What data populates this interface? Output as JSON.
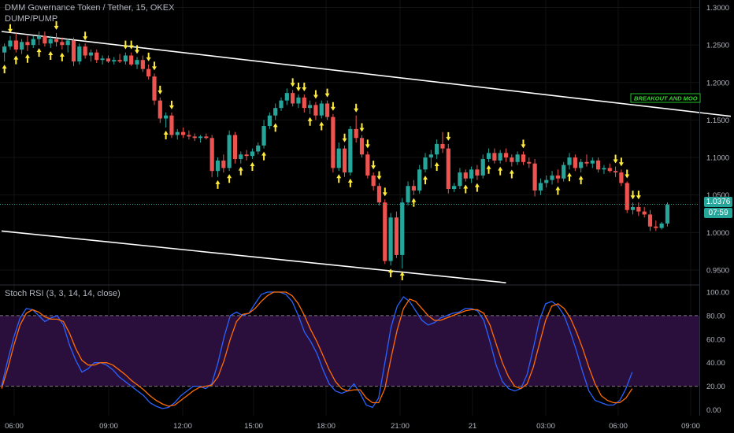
{
  "header": {
    "symbol_line": "DMM Governance Token / Tether, 15, OKEX",
    "indicator_line": "DUMP/PUMP",
    "stoch_label": "Stoch RSI (3, 3, 14, 14, close)"
  },
  "annotation": "BREAKOUT AND MOO",
  "price_badge": {
    "value": "1.0376",
    "timer": "07:59"
  },
  "colors": {
    "bg": "#000000",
    "up": "#26a69a",
    "down": "#ef5350",
    "arrow": "#ffeb3b",
    "line": "#ffffff",
    "k": "#2962ff",
    "d": "#ff6d00",
    "band": "#2a0f3d",
    "axis": "#b2b5be"
  },
  "chart_data": [
    {
      "type": "candlestick",
      "title": "DMM Governance Token / Tether, 15, OKEX",
      "ylim": [
        0.93,
        1.31
      ],
      "y_ticks": [
        "1.3000",
        "1.2500",
        "1.2000",
        "1.1500",
        "1.1000",
        "1.0500",
        "1.0000",
        "0.9500"
      ],
      "x_ticks": [
        "06:00",
        "09:00",
        "12:00",
        "15:00",
        "18:00",
        "21:00",
        "21",
        "03:00",
        "06:00",
        "09:00"
      ],
      "last_price": 1.0376,
      "trendlines": [
        {
          "from": [
            0,
            1.268
          ],
          "to": [
            126,
            1.155
          ]
        },
        {
          "from": [
            0,
            1.002
          ],
          "to": [
            87,
            0.933
          ]
        }
      ],
      "candles": [
        [
          1.24,
          1.252,
          1.228,
          1.248
        ],
        [
          1.248,
          1.262,
          1.244,
          1.256
        ],
        [
          1.256,
          1.266,
          1.24,
          1.244
        ],
        [
          1.244,
          1.258,
          1.238,
          1.254
        ],
        [
          1.254,
          1.262,
          1.242,
          1.25
        ],
        [
          1.25,
          1.262,
          1.246,
          1.258
        ],
        [
          1.258,
          1.268,
          1.25,
          1.262
        ],
        [
          1.262,
          1.268,
          1.248,
          1.252
        ],
        [
          1.252,
          1.262,
          1.246,
          1.258
        ],
        [
          1.258,
          1.266,
          1.248,
          1.254
        ],
        [
          1.254,
          1.26,
          1.244,
          1.25
        ],
        [
          1.25,
          1.258,
          1.24,
          1.256
        ],
        [
          1.256,
          1.26,
          1.222,
          1.228
        ],
        [
          1.228,
          1.252,
          1.224,
          1.248
        ],
        [
          1.248,
          1.252,
          1.232,
          1.236
        ],
        [
          1.236,
          1.244,
          1.228,
          1.24
        ],
        [
          1.24,
          1.244,
          1.226,
          1.23
        ],
        [
          1.23,
          1.236,
          1.224,
          1.232
        ],
        [
          1.232,
          1.236,
          1.226,
          1.228
        ],
        [
          1.228,
          1.234,
          1.224,
          1.23
        ],
        [
          1.23,
          1.238,
          1.226,
          1.228
        ],
        [
          1.228,
          1.24,
          1.224,
          1.236
        ],
        [
          1.236,
          1.24,
          1.222,
          1.224
        ],
        [
          1.224,
          1.234,
          1.218,
          1.23
        ],
        [
          1.23,
          1.236,
          1.214,
          1.218
        ],
        [
          1.218,
          1.224,
          1.204,
          1.208
        ],
        [
          1.208,
          1.212,
          1.17,
          1.176
        ],
        [
          1.176,
          1.18,
          1.146,
          1.152
        ],
        [
          1.152,
          1.16,
          1.14,
          1.156
        ],
        [
          1.156,
          1.16,
          1.126,
          1.13
        ],
        [
          1.13,
          1.138,
          1.124,
          1.134
        ],
        [
          1.134,
          1.14,
          1.126,
          1.13
        ],
        [
          1.13,
          1.136,
          1.124,
          1.128
        ],
        [
          1.128,
          1.132,
          1.122,
          1.126
        ],
        [
          1.126,
          1.13,
          1.12,
          1.128
        ],
        [
          1.128,
          1.132,
          1.124,
          1.126
        ],
        [
          1.126,
          1.13,
          1.074,
          1.082
        ],
        [
          1.082,
          1.1,
          1.074,
          1.096
        ],
        [
          1.096,
          1.104,
          1.08,
          1.086
        ],
        [
          1.086,
          1.136,
          1.082,
          1.13
        ],
        [
          1.13,
          1.134,
          1.092,
          1.098
        ],
        [
          1.098,
          1.108,
          1.092,
          1.104
        ],
        [
          1.104,
          1.11,
          1.096,
          1.102
        ],
        [
          1.102,
          1.112,
          1.098,
          1.108
        ],
        [
          1.108,
          1.12,
          1.104,
          1.116
        ],
        [
          1.116,
          1.15,
          1.112,
          1.142
        ],
        [
          1.142,
          1.16,
          1.138,
          1.156
        ],
        [
          1.156,
          1.172,
          1.15,
          1.166
        ],
        [
          1.166,
          1.18,
          1.162,
          1.176
        ],
        [
          1.176,
          1.192,
          1.17,
          1.186
        ],
        [
          1.186,
          1.19,
          1.168,
          1.172
        ],
        [
          1.172,
          1.184,
          1.166,
          1.18
        ],
        [
          1.18,
          1.184,
          1.16,
          1.166
        ],
        [
          1.166,
          1.176,
          1.158,
          1.17
        ],
        [
          1.17,
          1.174,
          1.15,
          1.156
        ],
        [
          1.156,
          1.176,
          1.152,
          1.172
        ],
        [
          1.172,
          1.176,
          1.15,
          1.154
        ],
        [
          1.154,
          1.158,
          1.08,
          1.086
        ],
        [
          1.086,
          1.12,
          1.082,
          1.112
        ],
        [
          1.112,
          1.116,
          1.074,
          1.08
        ],
        [
          1.08,
          1.142,
          1.076,
          1.138
        ],
        [
          1.138,
          1.156,
          1.12,
          1.126
        ],
        [
          1.126,
          1.13,
          1.1,
          1.104
        ],
        [
          1.104,
          1.108,
          1.072,
          1.076
        ],
        [
          1.076,
          1.08,
          1.056,
          1.062
        ],
        [
          1.062,
          1.066,
          1.036,
          1.04
        ],
        [
          1.04,
          1.044,
          0.958,
          0.962
        ],
        [
          0.962,
          1.026,
          0.956,
          1.02
        ],
        [
          1.02,
          1.028,
          0.966,
          0.97
        ],
        [
          0.97,
          1.046,
          0.952,
          1.04
        ],
        [
          1.04,
          1.068,
          1.036,
          1.062
        ],
        [
          1.062,
          1.07,
          1.05,
          1.056
        ],
        [
          1.056,
          1.09,
          1.052,
          1.084
        ],
        [
          1.084,
          1.106,
          1.08,
          1.1
        ],
        [
          1.1,
          1.11,
          1.086,
          1.104
        ],
        [
          1.104,
          1.124,
          1.098,
          1.118
        ],
        [
          1.118,
          1.134,
          1.106,
          1.112
        ],
        [
          1.112,
          1.118,
          1.052,
          1.058
        ],
        [
          1.058,
          1.066,
          1.054,
          1.062
        ],
        [
          1.062,
          1.086,
          1.058,
          1.08
        ],
        [
          1.08,
          1.084,
          1.068,
          1.072
        ],
        [
          1.072,
          1.088,
          1.066,
          1.084
        ],
        [
          1.084,
          1.09,
          1.07,
          1.076
        ],
        [
          1.076,
          1.104,
          1.072,
          1.098
        ],
        [
          1.098,
          1.112,
          1.094,
          1.106
        ],
        [
          1.106,
          1.112,
          1.092,
          1.096
        ],
        [
          1.096,
          1.11,
          1.092,
          1.106
        ],
        [
          1.106,
          1.112,
          1.094,
          1.1
        ],
        [
          1.1,
          1.104,
          1.088,
          1.094
        ],
        [
          1.094,
          1.108,
          1.09,
          1.104
        ],
        [
          1.104,
          1.108,
          1.09,
          1.094
        ],
        [
          1.094,
          1.1,
          1.086,
          1.092
        ],
        [
          1.092,
          1.098,
          1.048,
          1.056
        ],
        [
          1.056,
          1.072,
          1.05,
          1.066
        ],
        [
          1.066,
          1.076,
          1.06,
          1.07
        ],
        [
          1.07,
          1.082,
          1.064,
          1.076
        ],
        [
          1.076,
          1.084,
          1.066,
          1.072
        ],
        [
          1.072,
          1.094,
          1.068,
          1.09
        ],
        [
          1.09,
          1.106,
          1.084,
          1.1
        ],
        [
          1.1,
          1.104,
          1.082,
          1.086
        ],
        [
          1.086,
          1.098,
          1.08,
          1.094
        ],
        [
          1.094,
          1.104,
          1.088,
          1.092
        ],
        [
          1.092,
          1.1,
          1.086,
          1.096
        ],
        [
          1.096,
          1.1,
          1.08,
          1.084
        ],
        [
          1.084,
          1.09,
          1.078,
          1.086
        ],
        [
          1.086,
          1.092,
          1.08,
          1.082
        ],
        [
          1.082,
          1.088,
          1.074,
          1.08
        ],
        [
          1.08,
          1.084,
          1.062,
          1.066
        ],
        [
          1.066,
          1.068,
          1.026,
          1.03
        ],
        [
          1.03,
          1.04,
          1.024,
          1.034
        ],
        [
          1.034,
          1.04,
          1.022,
          1.028
        ],
        [
          1.028,
          1.034,
          1.02,
          1.024
        ],
        [
          1.024,
          1.03,
          1.002,
          1.008
        ],
        [
          1.008,
          1.016,
          1.002,
          1.006
        ],
        [
          1.006,
          1.014,
          1.004,
          1.012
        ],
        [
          1.012,
          1.04,
          1.008,
          1.037
        ]
      ],
      "up_arrows": [
        0,
        2,
        4,
        6,
        8,
        10,
        28,
        37,
        39,
        41,
        43,
        45,
        47,
        53,
        55,
        58,
        60,
        67,
        69,
        71,
        73,
        75,
        80,
        82,
        84,
        86,
        88,
        96,
        98,
        100
      ],
      "down_arrows": [
        1,
        9,
        14,
        21,
        22,
        23,
        25,
        26,
        27,
        29,
        50,
        51,
        52,
        54,
        56,
        57,
        59,
        61,
        62,
        63,
        64,
        65,
        66,
        77,
        90,
        106,
        107,
        108,
        109,
        110
      ]
    },
    {
      "type": "line",
      "title": "Stoch RSI (3, 3, 14, 14, close)",
      "ylim": [
        -5,
        106
      ],
      "y_ticks": [
        "100.00",
        "80.00",
        "60.00",
        "40.00",
        "20.00",
        "0.00"
      ],
      "band": [
        20,
        80
      ],
      "series": [
        {
          "name": "K",
          "values": [
            20,
            42,
            62,
            78,
            86,
            85,
            80,
            75,
            78,
            80,
            72,
            55,
            42,
            32,
            35,
            40,
            40,
            38,
            34,
            28,
            24,
            20,
            16,
            12,
            6,
            3,
            1,
            2,
            6,
            12,
            16,
            20,
            20,
            18,
            22,
            40,
            62,
            80,
            83,
            80,
            82,
            90,
            98,
            100,
            100,
            100,
            98,
            92,
            80,
            66,
            58,
            48,
            34,
            22,
            16,
            14,
            16,
            22,
            14,
            4,
            2,
            10,
            40,
            70,
            88,
            96,
            92,
            84,
            76,
            72,
            74,
            78,
            80,
            82,
            83,
            86,
            86,
            84,
            76,
            58,
            38,
            24,
            18,
            16,
            18,
            30,
            52,
            76,
            90,
            92,
            88,
            80,
            66,
            50,
            32,
            16,
            8,
            6,
            4,
            4,
            8,
            18,
            32
          ]
        },
        {
          "name": "D",
          "values": [
            18,
            35,
            55,
            72,
            82,
            85,
            83,
            79,
            77,
            77,
            75,
            65,
            52,
            42,
            38,
            38,
            40,
            40,
            38,
            34,
            30,
            25,
            21,
            17,
            12,
            8,
            5,
            3,
            4,
            8,
            12,
            16,
            19,
            20,
            21,
            28,
            42,
            60,
            75,
            81,
            82,
            86,
            92,
            97,
            100,
            100,
            100,
            97,
            90,
            80,
            68,
            58,
            46,
            34,
            24,
            18,
            16,
            17,
            17,
            10,
            6,
            6,
            18,
            44,
            68,
            86,
            94,
            92,
            86,
            80,
            76,
            76,
            78,
            80,
            82,
            84,
            85,
            85,
            82,
            72,
            56,
            40,
            28,
            20,
            18,
            22,
            36,
            56,
            76,
            88,
            90,
            86,
            78,
            66,
            52,
            36,
            22,
            12,
            8,
            6,
            6,
            10,
            18
          ]
        }
      ]
    }
  ]
}
